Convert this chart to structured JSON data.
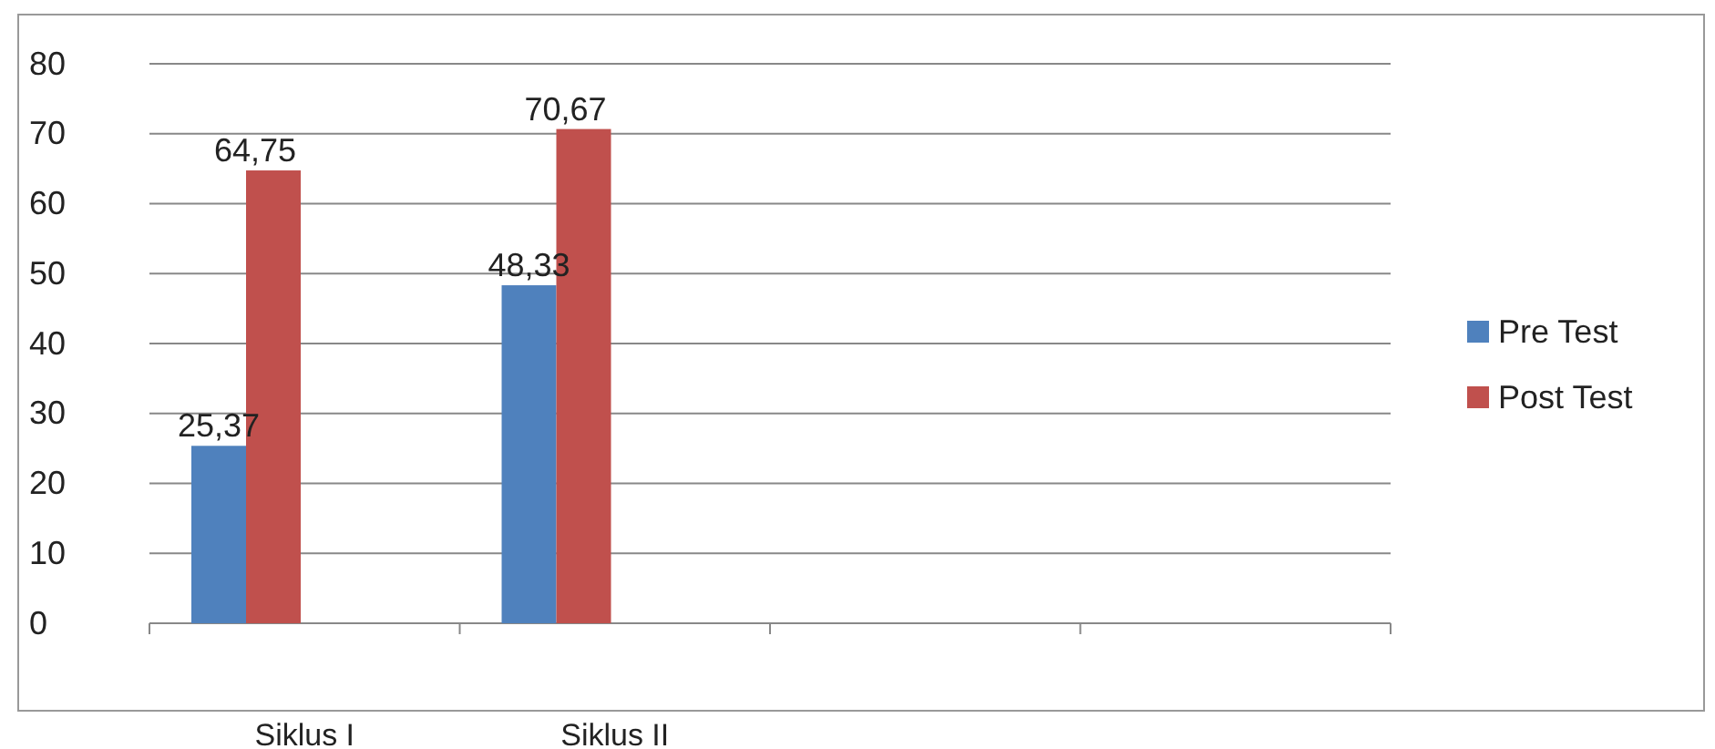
{
  "chart_data": {
    "type": "bar",
    "categories": [
      "Siklus I",
      "Siklus II",
      null,
      null
    ],
    "series": [
      {
        "name": "Pre Test",
        "color": "#4f81bd",
        "values": [
          25.37,
          48.33,
          null,
          null
        ],
        "value_labels": [
          "25,37",
          "48,33",
          null,
          null
        ]
      },
      {
        "name": "Post Test",
        "color": "#c0504d",
        "values": [
          64.75,
          70.67,
          null,
          null
        ],
        "value_labels": [
          "64,75",
          "70,67",
          null,
          null
        ]
      }
    ],
    "ylim": [
      0,
      80
    ],
    "yticks": [
      0,
      10,
      20,
      30,
      40,
      50,
      60,
      70,
      80
    ],
    "grid": "y",
    "legend": "right"
  }
}
